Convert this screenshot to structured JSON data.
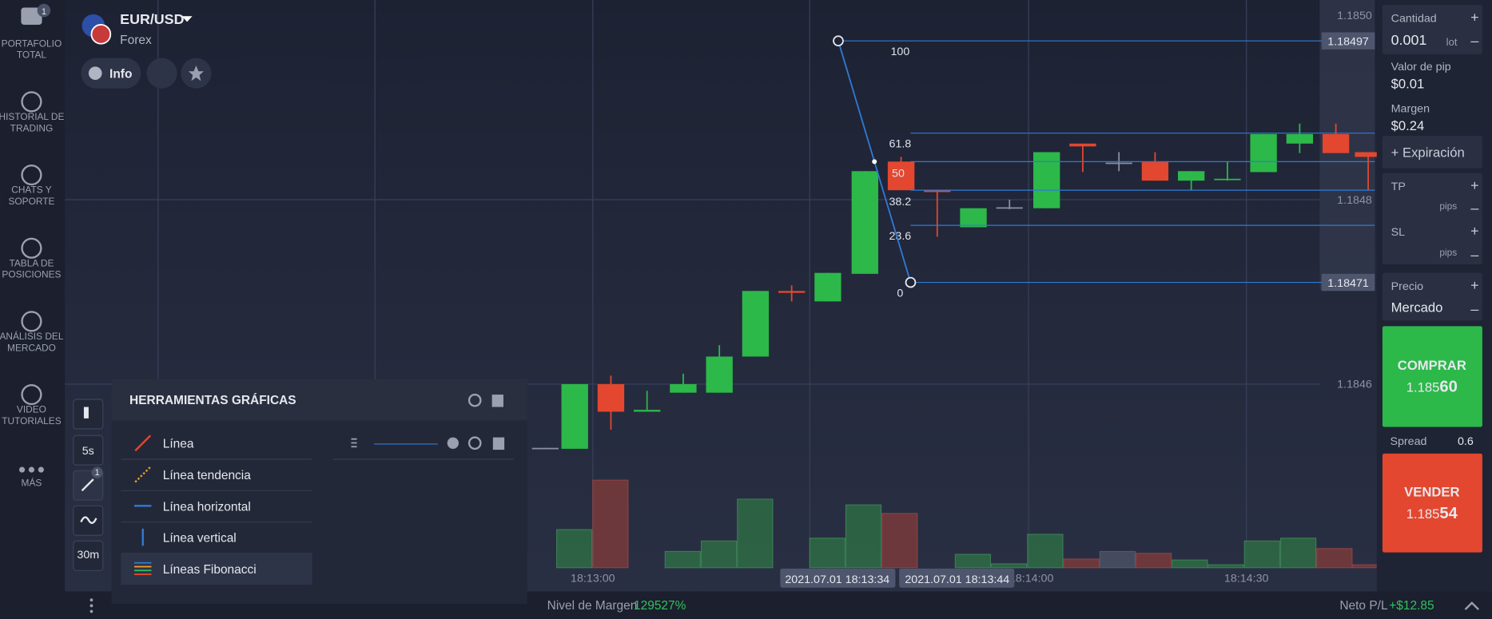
{
  "sidebar": {
    "items": [
      "PORTAFOLIO|TOTAL",
      "HISTORIAL DE|TRADING",
      "CHATS Y|SOPORTE",
      "TABLA DE|POSICIONES",
      "ANÁLISIS DEL|MERCADO",
      "VIDEO|TUTORIALES",
      "MÁS"
    ],
    "badge": "1"
  },
  "header": {
    "pair": "EUR/USD",
    "market": "Forex",
    "info": "Info"
  },
  "chart": {
    "price_labels": [
      "1.1850",
      "1.1848",
      "1.1846"
    ],
    "marked_prices": [
      "1.18497",
      "1.18471"
    ],
    "fib_levels": [
      "100",
      "61.8",
      "50",
      "38.2",
      "23.6",
      "0"
    ],
    "time_labels": [
      "18:13:00",
      "18:14:00",
      "18:14:30"
    ],
    "cursor_times": [
      "2021.07.01 18:13:34",
      "2021.07.01 18:13:44"
    ]
  },
  "tools": {
    "interval": "5s",
    "timeframe": "30m",
    "badge": "1"
  },
  "drawing_panel": {
    "title": "HERRAMIENTAS GRÁFICAS",
    "items": [
      "Línea",
      "Línea tendencia",
      "Línea horizontal",
      "Línea vertical",
      "Líneas Fibonacci"
    ]
  },
  "status_bar": {
    "margin_level_label": "Nivel de Margen",
    "margin_level": "129527%",
    "net_pl_label": "Neto P/L",
    "net_pl": "+$12.85"
  },
  "order_panel": {
    "quantity_label": "Cantidad",
    "quantity": "0.001",
    "quantity_unit": "lot",
    "pip_value_label": "Valor de pip",
    "pip_value": "$0.01",
    "margin_label": "Margen",
    "margin": "$0.24",
    "expiration": "+ Expiración",
    "tp_label": "TP",
    "sl_label": "SL",
    "pips_unit": "pips",
    "price_label": "Precio",
    "price_mode": "Mercado",
    "buy_label": "COMPRAR",
    "buy_price_main": "1.185",
    "buy_price_pips": "60",
    "spread_label": "Spread",
    "spread": "0.6",
    "sell_label": "VENDER",
    "sell_price_main": "1.185",
    "sell_price_pips": "54"
  }
}
